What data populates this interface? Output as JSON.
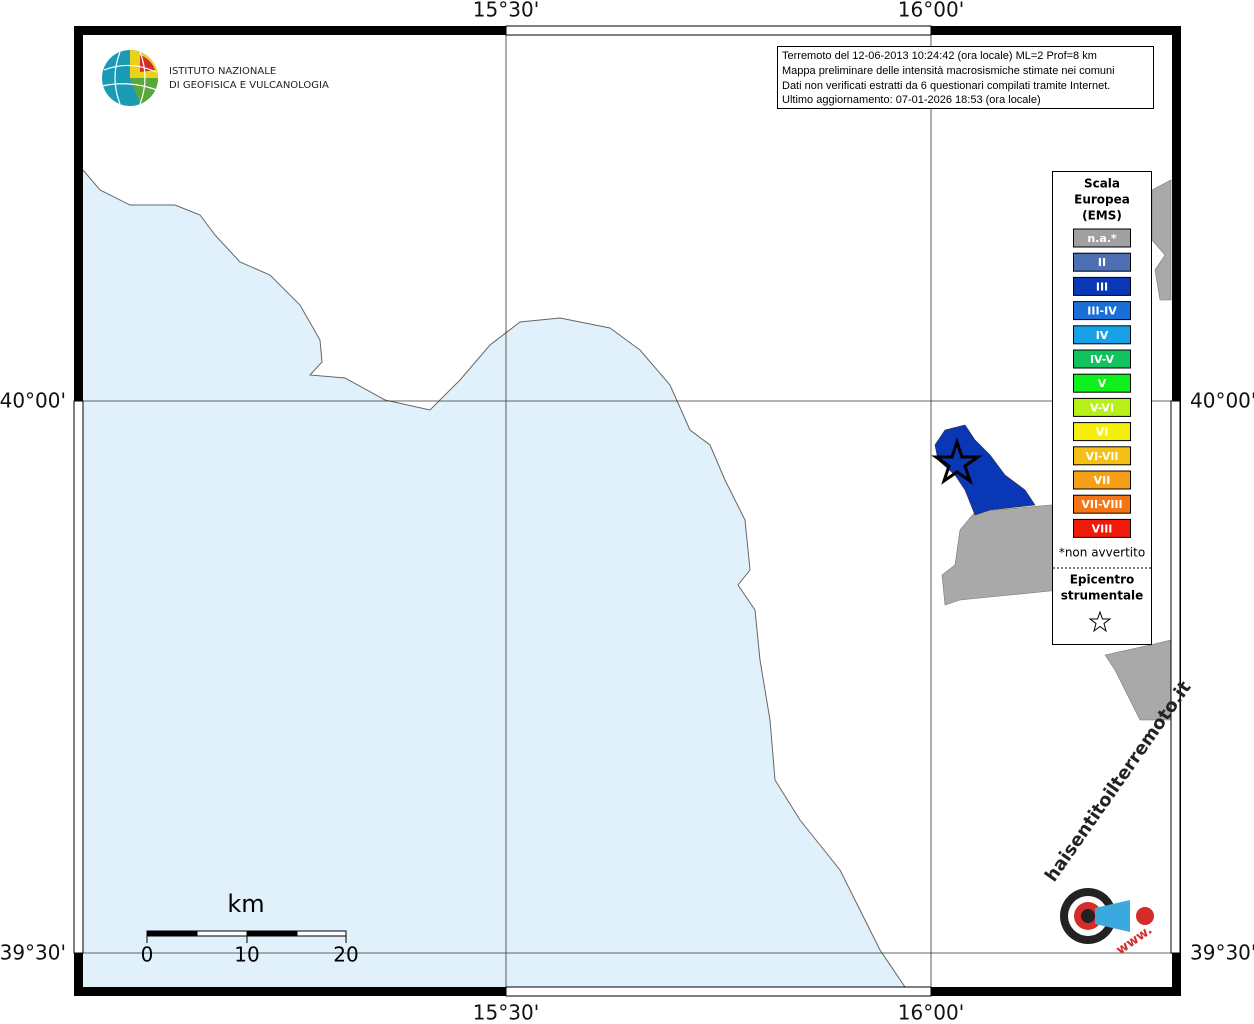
{
  "map": {
    "longitude_labels": [
      "15°30'",
      "16°00'"
    ],
    "latitude_labels": [
      "40°00'",
      "39°30'"
    ],
    "info_box": [
      "Terremoto del 12-06-2013 10:24:42 (ora locale) ML=2 Prof=8 km",
      "Mappa preliminare delle intensità macrosismiche stimate nei comuni",
      "Dati non verificati estratti da 6 questionari compilati tramite Internet.",
      "Ultimo aggiornamento: 07-01-2026 18:53 (ora locale)"
    ],
    "institute_logo": [
      "ISTITUTO NAZIONALE",
      "DI GEOFISICA E VULCANOLOGIA"
    ],
    "legend": {
      "title": [
        "Scala",
        "Europea",
        "(EMS)"
      ],
      "items": [
        {
          "label": "n.a.*",
          "color": "#a0a0a0"
        },
        {
          "label": "II",
          "color": "#4d6fb3"
        },
        {
          "label": "III",
          "color": "#0a37b5"
        },
        {
          "label": "III-IV",
          "color": "#1a6fd6"
        },
        {
          "label": "IV",
          "color": "#17a1e6"
        },
        {
          "label": "IV-V",
          "color": "#11c25e"
        },
        {
          "label": "V",
          "color": "#0df01b"
        },
        {
          "label": "V-VI",
          "color": "#b8f01a"
        },
        {
          "label": "VI",
          "color": "#f5f00a"
        },
        {
          "label": "VI-VII",
          "color": "#f5c015"
        },
        {
          "label": "VII",
          "color": "#f5a018"
        },
        {
          "label": "VII-VIII",
          "color": "#f57515"
        },
        {
          "label": "VIII",
          "color": "#f01a0a"
        }
      ],
      "note": "*non avvertito",
      "epicentre": [
        "Epicentro",
        "strumentale"
      ]
    },
    "scale_bar": {
      "unit": "km",
      "labels": [
        "0",
        "10",
        "20"
      ]
    },
    "site_logo": {
      "domain": "haisentitoilterremoto.it",
      "prefix": "www."
    }
  }
}
